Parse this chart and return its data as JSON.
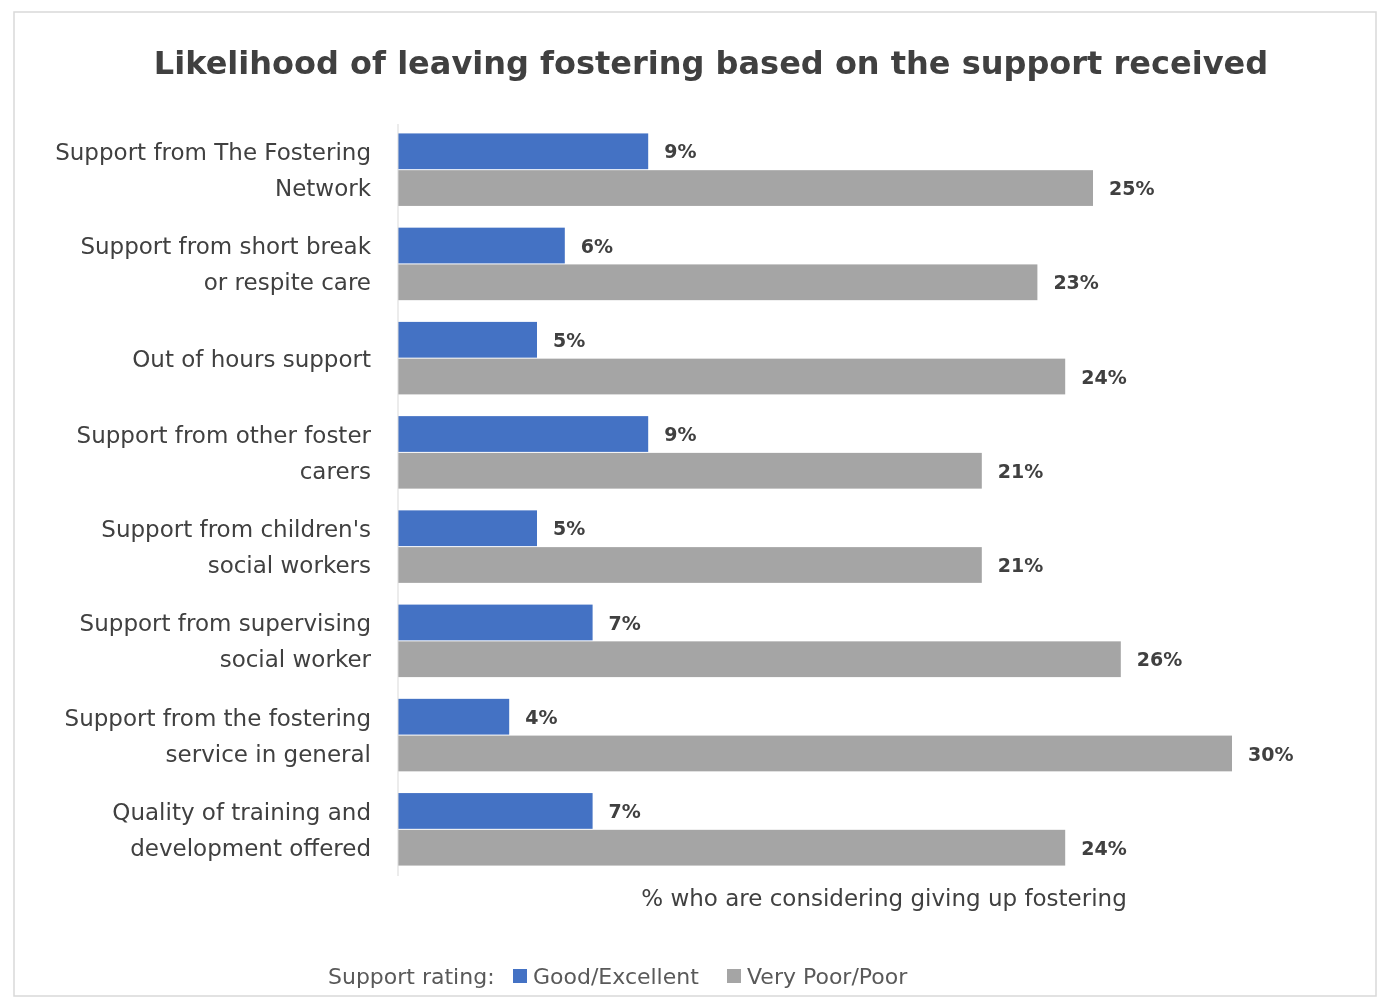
{
  "chart_data": {
    "type": "bar",
    "orientation": "horizontal",
    "title": "Likelihood of leaving fostering based on the support received",
    "xlabel": "% who are considering giving up fostering",
    "legend_title": "Support rating:",
    "legend": "bottom",
    "tick_labels": "y",
    "categories": [
      "Support from The Fostering Network",
      "Support from short break or respite care",
      "Out of hours support",
      "Support from other foster carers",
      "Support from children's social workers",
      "Support from supervising social worker",
      "Support from the fostering service in general",
      "Quality of training and development offered"
    ],
    "series": [
      {
        "name": "Good/Excellent",
        "color": "#4472c4",
        "values": [
          9,
          6,
          5,
          9,
          5,
          7,
          4,
          7
        ],
        "value_labels": [
          "9%",
          "6%",
          "5%",
          "9%",
          "5%",
          "7%",
          "4%",
          "7%"
        ]
      },
      {
        "name": "Very Poor/Poor",
        "color": "#a5a5a5",
        "values": [
          25,
          23,
          24,
          21,
          21,
          26,
          30,
          24
        ],
        "value_labels": [
          "25%",
          "23%",
          "24%",
          "21%",
          "21%",
          "26%",
          "30%",
          "24%"
        ]
      }
    ]
  }
}
